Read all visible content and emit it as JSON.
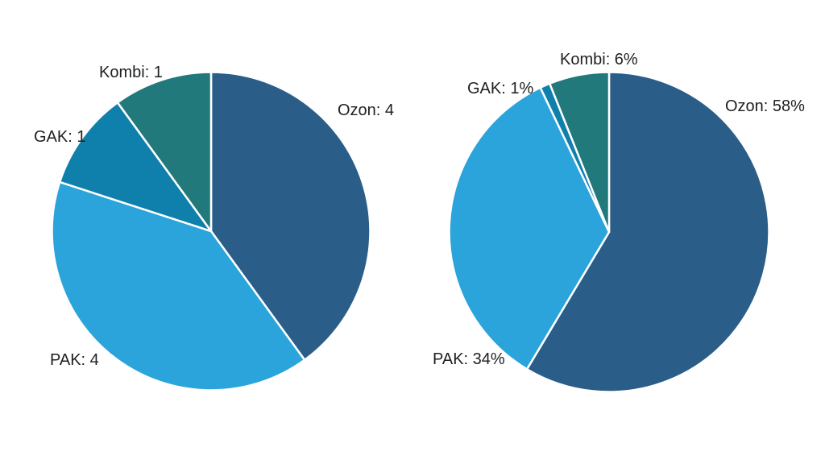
{
  "page": {
    "background_color": "#ffffff",
    "text_color": "#1f1f1f",
    "separator_color": "#ffffff"
  },
  "palette": {
    "ozon": "#2A5D87",
    "pak": "#2AA4DB",
    "gak": "#0F80AC",
    "kombi": "#21797B"
  },
  "chart_data": [
    {
      "type": "pie",
      "name": "counts-pie",
      "title": "",
      "value_format": "count",
      "start_angle_deg": 0,
      "direction": "clockwise",
      "legend": "none",
      "categories": [
        "Ozon",
        "PAK",
        "GAK",
        "Kombi"
      ],
      "values": [
        4,
        4,
        1,
        1
      ],
      "slices": [
        {
          "category": "Ozon",
          "value": 4,
          "display": "Ozon: 4",
          "color": "#2A5D87"
        },
        {
          "category": "PAK",
          "value": 4,
          "display": "PAK: 4",
          "color": "#2AA4DB"
        },
        {
          "category": "GAK",
          "value": 1,
          "display": "GAK: 1",
          "color": "#0F80AC"
        },
        {
          "category": "Kombi",
          "value": 1,
          "display": "Kombi: 1",
          "color": "#21797B"
        }
      ]
    },
    {
      "type": "pie",
      "name": "percentages-pie",
      "title": "",
      "value_format": "percent",
      "start_angle_deg": 0,
      "direction": "clockwise",
      "legend": "none",
      "categories": [
        "Ozon",
        "PAK",
        "GAK",
        "Kombi"
      ],
      "values": [
        58,
        34,
        1,
        6
      ],
      "slices": [
        {
          "category": "Ozon",
          "value": 58,
          "display": "Ozon: 58%",
          "color": "#2A5D87"
        },
        {
          "category": "PAK",
          "value": 34,
          "display": "PAK: 34%",
          "color": "#2AA4DB"
        },
        {
          "category": "GAK",
          "value": 1,
          "display": "GAK: 1%",
          "color": "#0F80AC"
        },
        {
          "category": "Kombi",
          "value": 6,
          "display": "Kombi: 6%",
          "color": "#21797B"
        }
      ]
    }
  ]
}
